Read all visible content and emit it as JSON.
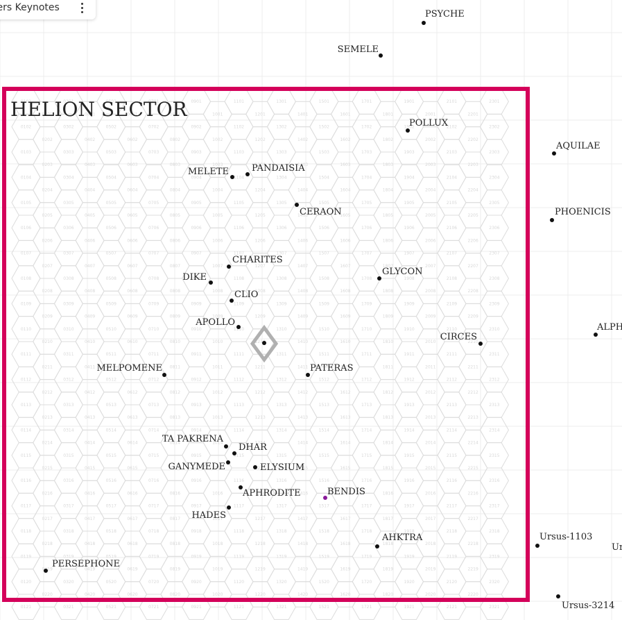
{
  "top_card": {
    "title": "ters Keynotes"
  },
  "sector": {
    "name": "HELION SECTOR",
    "border_color": "#d4005a"
  },
  "colors": {
    "grid": "#ececec",
    "hex": "#dcdcdc",
    "dot": "#111111",
    "highlight": "#8a1a9a",
    "marker": "#b0b0b0"
  },
  "icons": {
    "menu": "vertical-ellipsis-icon",
    "marker": "diamond-location-marker-icon"
  },
  "systems": [
    {
      "name": "PSYCHE",
      "highlight": false
    },
    {
      "name": "SEMELE",
      "highlight": false
    },
    {
      "name": "POLLUX",
      "highlight": false
    },
    {
      "name": "AQUILAE",
      "highlight": false
    },
    {
      "name": "MELETE",
      "highlight": false
    },
    {
      "name": "PANDAISIA",
      "highlight": false
    },
    {
      "name": "CERAON",
      "highlight": false
    },
    {
      "name": "PHOENICIS",
      "highlight": false
    },
    {
      "name": "CHARITES",
      "highlight": false
    },
    {
      "name": "DIKE",
      "highlight": false
    },
    {
      "name": "GLYCON",
      "highlight": false
    },
    {
      "name": "CLIO",
      "highlight": false
    },
    {
      "name": "APOLLO",
      "highlight": false
    },
    {
      "name": "ALPH",
      "highlight": false
    },
    {
      "name": "CIRCES",
      "highlight": false
    },
    {
      "name": "MELPOMENE",
      "highlight": false
    },
    {
      "name": "PATERAS",
      "highlight": false
    },
    {
      "name": "TA PAKRENA",
      "highlight": false
    },
    {
      "name": "DHAR",
      "highlight": false
    },
    {
      "name": "GANYMEDE",
      "highlight": false
    },
    {
      "name": "ELYSIUM",
      "highlight": false
    },
    {
      "name": "APHRODITE",
      "highlight": false
    },
    {
      "name": "BENDIS",
      "highlight": true
    },
    {
      "name": "HADES",
      "highlight": false
    },
    {
      "name": "AHKTRA",
      "highlight": false
    },
    {
      "name": "Ursus-1103",
      "highlight": false
    },
    {
      "name": "Ur",
      "highlight": false
    },
    {
      "name": "PERSEPHONE",
      "highlight": false
    },
    {
      "name": "Ursus-3214",
      "highlight": false
    }
  ]
}
